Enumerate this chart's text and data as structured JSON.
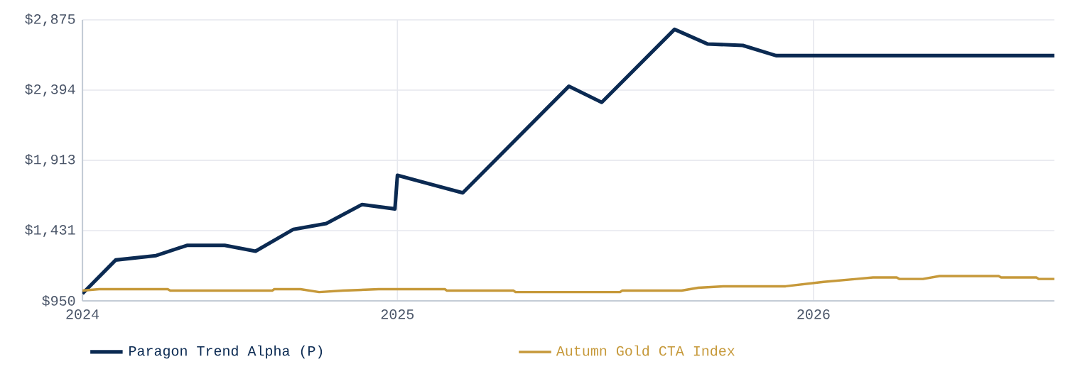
{
  "chart_data": {
    "type": "line",
    "xlim": [
      2024.243,
      2026.579
    ],
    "ylim": [
      950,
      2875
    ],
    "xticks": [
      {
        "value": 2024.243,
        "label": "2024"
      },
      {
        "value": 2025,
        "label": "2025"
      },
      {
        "value": 2026,
        "label": "2026"
      }
    ],
    "yticks": [
      {
        "value": 950,
        "label": "$950"
      },
      {
        "value": 1431,
        "label": "$1,431"
      },
      {
        "value": 1913,
        "label": "$1,913"
      },
      {
        "value": 2394,
        "label": "$2,394"
      },
      {
        "value": 2875,
        "label": "$2,875"
      }
    ],
    "grid": true,
    "legend": "bottom",
    "marker": "none",
    "line_style": "solid",
    "series": [
      {
        "name": "Paragon Trend Alpha (P)",
        "color": "#0b2a52",
        "x": [
          2024.243,
          2024.323,
          2024.42,
          2024.494,
          2024.585,
          2024.659,
          2024.75,
          2024.829,
          2024.915,
          2024.994,
          2025.0,
          2025.157,
          2025.412,
          2025.491,
          2025.666,
          2025.745,
          2025.83,
          2025.91,
          2026.579
        ],
        "values": [
          1000,
          1230,
          1260,
          1330,
          1330,
          1290,
          1440,
          1480,
          1610,
          1580,
          1810,
          1690,
          2420,
          2310,
          2810,
          2710,
          2700,
          2630,
          2630
        ]
      },
      {
        "name": "Autumn Gold CTA Index",
        "color": "#c6993a",
        "x": [
          2024.243,
          2024.283,
          2024.448,
          2024.454,
          2024.699,
          2024.704,
          2024.767,
          2024.812,
          2024.869,
          2024.955,
          2024.96,
          2025.114,
          2025.119,
          2025.279,
          2025.284,
          2025.535,
          2025.54,
          2025.683,
          2025.723,
          2025.785,
          2025.933,
          2026.024,
          2026.103,
          2026.143,
          2026.2,
          2026.206,
          2026.263,
          2026.303,
          2026.445,
          2026.451,
          2026.536,
          2026.541,
          2026.579
        ],
        "values": [
          1020,
          1030,
          1030,
          1020,
          1020,
          1030,
          1030,
          1010,
          1020,
          1030,
          1030,
          1030,
          1020,
          1020,
          1010,
          1010,
          1020,
          1020,
          1040,
          1050,
          1050,
          1080,
          1100,
          1110,
          1110,
          1100,
          1100,
          1120,
          1120,
          1110,
          1110,
          1100,
          1100
        ]
      }
    ]
  }
}
